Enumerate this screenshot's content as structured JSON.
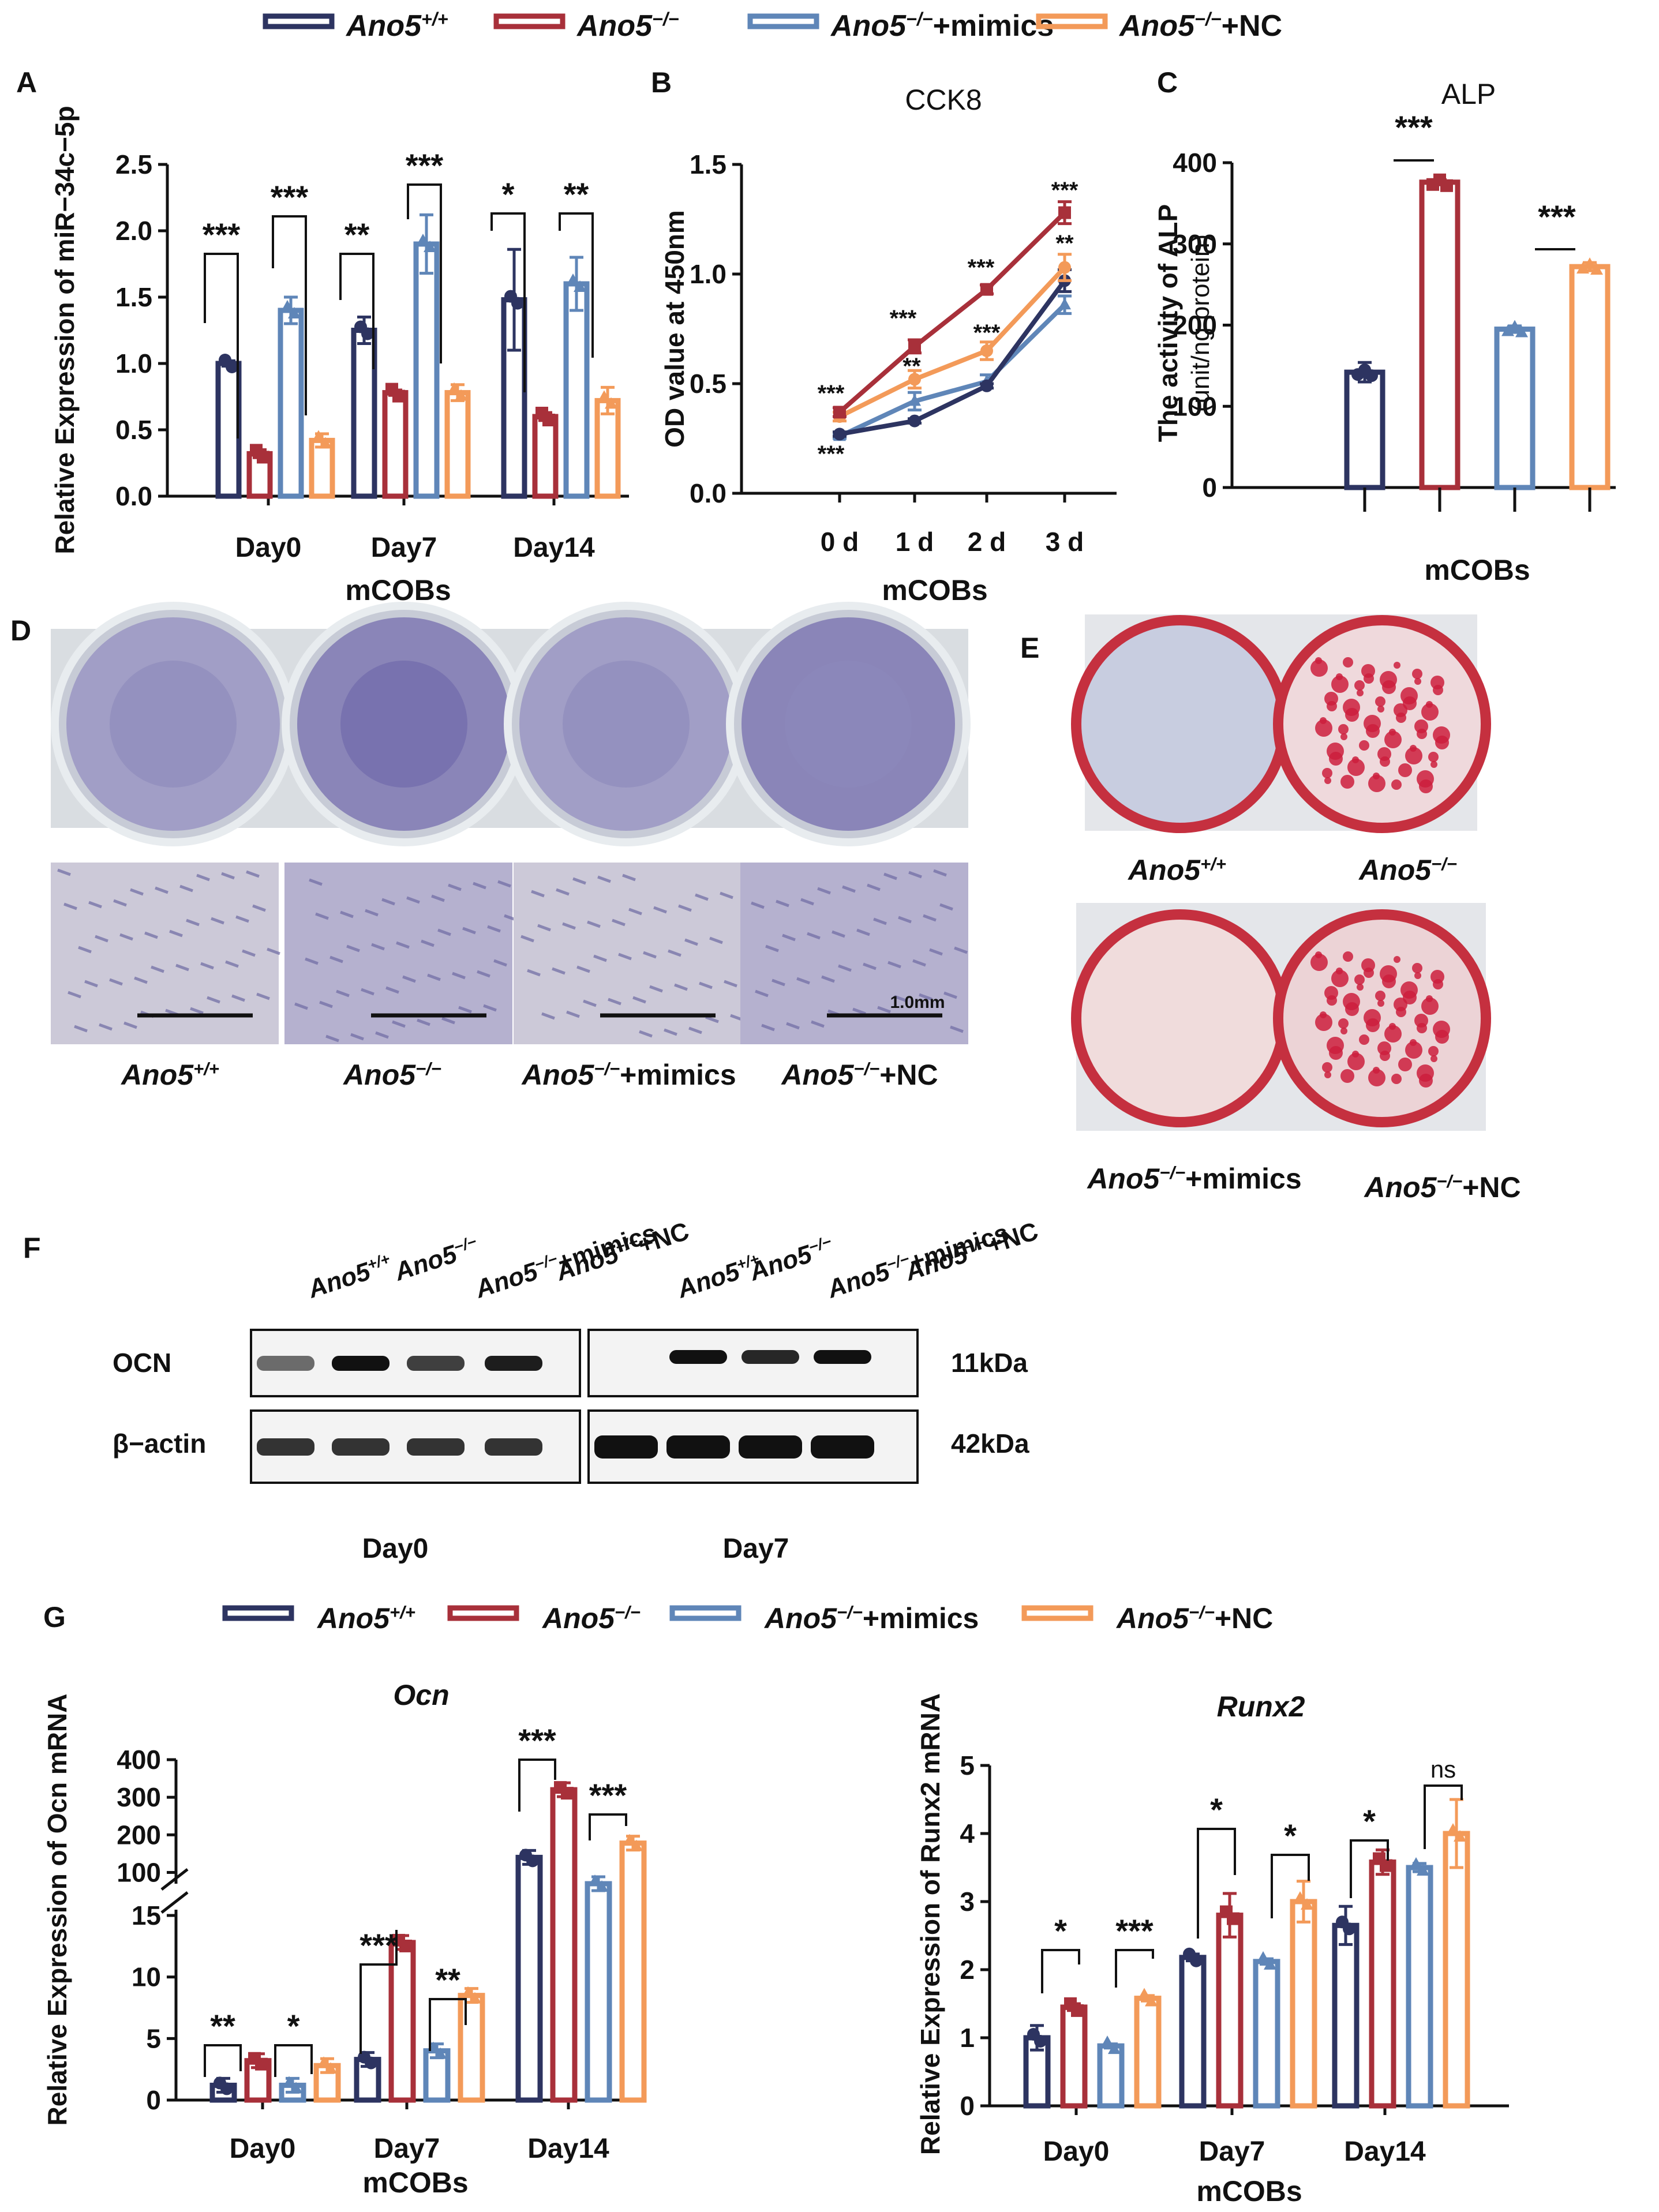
{
  "colors": {
    "wt": "#2d3461",
    "ko": "#a8303a",
    "mimics": "#5f86b8",
    "nc": "#f39a59",
    "axis": "#111111"
  },
  "genotype": "Ano5",
  "wt_sup": "+/+",
  "ko_sup": "−/−",
  "mimics_suffix": "+mimics",
  "nc_suffix": "+NC",
  "legend_top": [
    "Ano5+/+",
    "Ano5−/−",
    "Ano5−/−+mimics",
    "Ano5−/−+NC"
  ],
  "legend_g": [
    "Ano5+/+",
    "Ano5−/−",
    "Ano5−/−+mimics",
    "Ano5−/−+NC"
  ],
  "panel_letters": {
    "A": "A",
    "B": "B",
    "C": "C",
    "D": "D",
    "E": "E",
    "F": "F",
    "G": "G"
  },
  "chart_data": [
    {
      "id": "A",
      "type": "bar",
      "title": "",
      "xlabel": "mCOBs",
      "ylabel": "Relative Expression of miR−34c−5p",
      "categories": [
        "Day0",
        "Day7",
        "Day14"
      ],
      "ylim": [
        0,
        2.5
      ],
      "yticks": [
        "0.0",
        "0.5",
        "1.0",
        "1.5",
        "2.0",
        "2.5"
      ],
      "series": [
        {
          "name": "Ano5+/+",
          "values": [
            1.0,
            1.25,
            1.48
          ]
        },
        {
          "name": "Ano5−/−",
          "values": [
            0.32,
            0.78,
            0.6
          ]
        },
        {
          "name": "Ano5−/−+mimics",
          "values": [
            1.4,
            1.9,
            1.6
          ]
        },
        {
          "name": "Ano5−/−+NC",
          "values": [
            0.42,
            0.78,
            0.72
          ]
        }
      ],
      "errors": [
        [
          0.02,
          0.1,
          0.38
        ],
        [
          0.03,
          0.02,
          0.03
        ],
        [
          0.1,
          0.22,
          0.2
        ],
        [
          0.05,
          0.06,
          0.1
        ]
      ],
      "significance": [
        "***",
        "***",
        "**",
        "***",
        "*",
        "**"
      ]
    },
    {
      "id": "B",
      "type": "line",
      "title": "CCK8",
      "xlabel": "mCOBs",
      "ylabel": "OD value at 450nm",
      "categories": [
        "0 d",
        "1 d",
        "2 d",
        "3 d"
      ],
      "ylim": [
        0,
        1.5
      ],
      "yticks": [
        "0.0",
        "0.5",
        "1.0",
        "1.5"
      ],
      "series": [
        {
          "name": "Ano5+/+",
          "values": [
            0.27,
            0.33,
            0.49,
            0.97
          ]
        },
        {
          "name": "Ano5−/−",
          "values": [
            0.37,
            0.67,
            0.93,
            1.28
          ]
        },
        {
          "name": "Ano5−/−+mimics",
          "values": [
            0.26,
            0.42,
            0.51,
            0.86
          ]
        },
        {
          "name": "Ano5−/−+NC",
          "values": [
            0.35,
            0.52,
            0.65,
            1.03
          ]
        }
      ],
      "errors": [
        [
          0.01,
          0.01,
          0.01,
          0.05
        ],
        [
          0.02,
          0.03,
          0.02,
          0.05
        ],
        [
          0.01,
          0.04,
          0.03,
          0.04
        ],
        [
          0.02,
          0.04,
          0.04,
          0.06
        ]
      ],
      "significance": [
        "***",
        "***",
        "***",
        "***",
        "**",
        "***",
        "***",
        "**"
      ]
    },
    {
      "id": "C",
      "type": "bar",
      "title": "ALP",
      "xlabel": "mCOBs",
      "ylabel": "The activity of ALP",
      "ylabel2": "(unit/ng protein)",
      "categories": [
        "Ano5+/+",
        "Ano5−/−",
        "Ano5−/−+mimics",
        "Ano5−/−+NC"
      ],
      "ylim": [
        0,
        400
      ],
      "yticks": [
        "0",
        "100",
        "200",
        "300",
        "400"
      ],
      "values": [
        142,
        376,
        195,
        272
      ],
      "errors": [
        12,
        3,
        4,
        5
      ],
      "significance": [
        "***",
        "***"
      ]
    },
    {
      "id": "Gocn",
      "type": "bar",
      "title": "Ocn",
      "xlabel": "mCOBs",
      "ylabel": "Relative Expression of Ocn mRNA",
      "categories": [
        "Day0",
        "Day7",
        "Day14"
      ],
      "yticks_low": [
        "0",
        "5",
        "10",
        "15"
      ],
      "yticks_high": [
        "100",
        "200",
        "300",
        "400"
      ],
      "series": [
        {
          "name": "Ano5+/+",
          "values": [
            1.2,
            3.3,
            140
          ]
        },
        {
          "name": "Ano5−/−",
          "values": [
            3.2,
            12.8,
            320
          ]
        },
        {
          "name": "Ano5−/−+mimics",
          "values": [
            1.2,
            4.0,
            50
          ]
        },
        {
          "name": "Ano5−/−+NC",
          "values": [
            2.8,
            8.5,
            178
          ]
        }
      ],
      "significance": [
        "**",
        "*",
        "***",
        "**",
        "***",
        "***"
      ]
    },
    {
      "id": "Grunx2",
      "type": "bar",
      "title": "Runx2",
      "xlabel": "mCOBs",
      "ylabel": "Relative Expression of Runx2 mRNA",
      "categories": [
        "Day0",
        "Day7",
        "Day14"
      ],
      "ylim": [
        0,
        5
      ],
      "yticks": [
        "0",
        "1",
        "2",
        "3",
        "4",
        "5"
      ],
      "series": [
        {
          "name": "Ano5+/+",
          "values": [
            1.0,
            2.18,
            2.65
          ]
        },
        {
          "name": "Ano5−/−",
          "values": [
            1.45,
            2.8,
            3.58
          ]
        },
        {
          "name": "Ano5−/−+mimics",
          "values": [
            0.88,
            2.12,
            3.5
          ]
        },
        {
          "name": "Ano5−/−+NC",
          "values": [
            1.58,
            3.0,
            4.0
          ]
        }
      ],
      "errors": [
        [
          0.18,
          0.05,
          0.28
        ],
        [
          0.05,
          0.32,
          0.18
        ],
        [
          0.03,
          0.04,
          0.06
        ],
        [
          0.04,
          0.3,
          0.5
        ]
      ],
      "significance": [
        "*",
        "***",
        "*",
        "*",
        "*",
        "ns"
      ]
    }
  ],
  "panelD": {
    "labels": [
      "Ano5+/+",
      "Ano5−/−",
      "Ano5−/−+mimics",
      "Ano5−/−+NC"
    ],
    "scale": "1.0mm"
  },
  "panelE": {
    "labels": [
      "Ano5+/+",
      "Ano5−/−",
      "Ano5−/−+mimics",
      "Ano5−/−+NC"
    ]
  },
  "panelF": {
    "lanes": [
      "Ano5+/+",
      "Ano5−/−",
      "Ano5−/−+mimics",
      "Ano5−/−+NC"
    ],
    "rows": [
      "OCN",
      "β−actin"
    ],
    "kda": [
      "11kDa",
      "42kDa"
    ],
    "days": [
      "Day0",
      "Day7"
    ]
  }
}
